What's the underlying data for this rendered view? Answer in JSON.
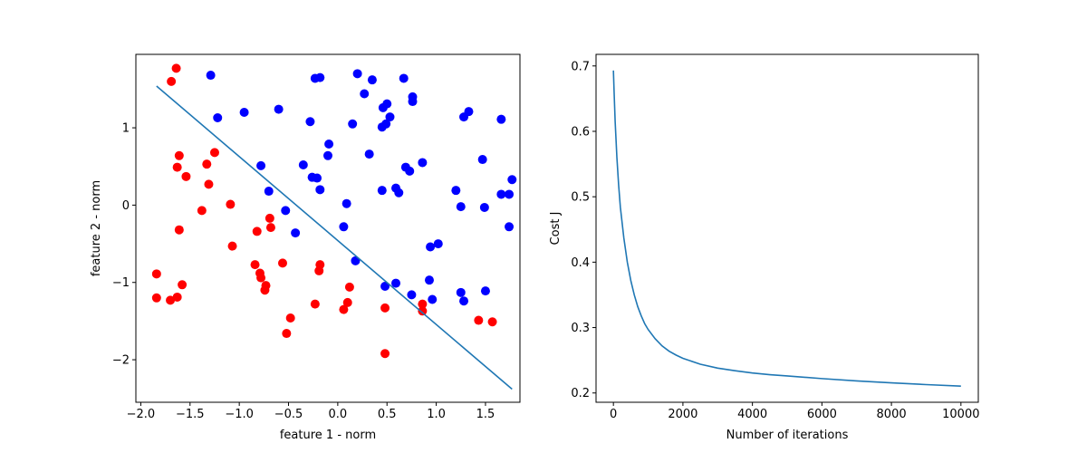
{
  "chart_data": [
    {
      "type": "scatter",
      "title": "",
      "xlabel": "feature 1 - norm",
      "ylabel": "feature 2 - norm",
      "xlim": [
        -2.05,
        1.85
      ],
      "ylim": [
        -2.55,
        1.95
      ],
      "xticks": [
        -2.0,
        -1.5,
        -1.0,
        -0.5,
        0.0,
        0.5,
        1.0,
        1.5
      ],
      "xtick_labels": [
        "−2.0",
        "−1.5",
        "−1.0",
        "−0.5",
        "0.0",
        "0.5",
        "1.0",
        "1.5"
      ],
      "yticks": [
        -2,
        -1,
        0,
        1
      ],
      "ytick_labels": [
        "−2",
        "−1",
        "0",
        "1"
      ],
      "grid": false,
      "series": [
        {
          "color": "#ff0000",
          "points": [
            [
              -1.64,
              1.77
            ],
            [
              -1.69,
              1.6
            ],
            [
              -1.61,
              0.64
            ],
            [
              -1.63,
              0.49
            ],
            [
              -1.54,
              0.37
            ],
            [
              -1.33,
              0.53
            ],
            [
              -1.25,
              0.68
            ],
            [
              -1.31,
              0.27
            ],
            [
              -1.38,
              -0.07
            ],
            [
              -1.09,
              0.01
            ],
            [
              -1.61,
              -0.32
            ],
            [
              -1.07,
              -0.53
            ],
            [
              -0.69,
              -0.17
            ],
            [
              -0.68,
              -0.29
            ],
            [
              -0.82,
              -0.34
            ],
            [
              -0.84,
              -0.77
            ],
            [
              -0.79,
              -0.88
            ],
            [
              -0.78,
              -0.94
            ],
            [
              -0.73,
              -1.04
            ],
            [
              -0.74,
              -1.1
            ],
            [
              -0.56,
              -0.75
            ],
            [
              -0.18,
              -0.77
            ],
            [
              -0.19,
              -0.85
            ],
            [
              -1.84,
              -0.89
            ],
            [
              -1.84,
              -1.2
            ],
            [
              -1.58,
              -1.03
            ],
            [
              -1.63,
              -1.19
            ],
            [
              -1.7,
              -1.23
            ],
            [
              -0.23,
              -1.28
            ],
            [
              -0.48,
              -1.46
            ],
            [
              -0.52,
              -1.66
            ],
            [
              0.06,
              -1.35
            ],
            [
              0.1,
              -1.26
            ],
            [
              0.12,
              -1.06
            ],
            [
              0.48,
              -1.33
            ],
            [
              0.86,
              -1.28
            ],
            [
              0.86,
              -1.37
            ],
            [
              1.43,
              -1.49
            ],
            [
              1.57,
              -1.51
            ],
            [
              0.48,
              -1.92
            ]
          ]
        },
        {
          "color": "#0000ff",
          "points": [
            [
              -1.29,
              1.68
            ],
            [
              -1.22,
              1.13
            ],
            [
              -0.95,
              1.2
            ],
            [
              -0.6,
              1.24
            ],
            [
              -0.23,
              1.64
            ],
            [
              -0.18,
              1.65
            ],
            [
              0.2,
              1.7
            ],
            [
              0.35,
              1.62
            ],
            [
              0.67,
              1.64
            ],
            [
              -0.28,
              1.08
            ],
            [
              0.15,
              1.05
            ],
            [
              0.27,
              1.44
            ],
            [
              0.46,
              1.26
            ],
            [
              0.5,
              1.31
            ],
            [
              0.53,
              1.14
            ],
            [
              0.49,
              1.05
            ],
            [
              0.45,
              1.01
            ],
            [
              0.76,
              1.4
            ],
            [
              0.76,
              1.34
            ],
            [
              -0.09,
              0.79
            ],
            [
              -0.1,
              0.64
            ],
            [
              0.32,
              0.66
            ],
            [
              -0.35,
              0.52
            ],
            [
              -0.78,
              0.51
            ],
            [
              -0.26,
              0.36
            ],
            [
              -0.21,
              0.35
            ],
            [
              -0.18,
              0.2
            ],
            [
              -0.7,
              0.18
            ],
            [
              0.09,
              0.02
            ],
            [
              0.45,
              0.19
            ],
            [
              0.59,
              0.22
            ],
            [
              0.62,
              0.16
            ],
            [
              0.69,
              0.49
            ],
            [
              0.73,
              0.44
            ],
            [
              0.86,
              0.55
            ],
            [
              -0.53,
              -0.07
            ],
            [
              -0.43,
              -0.36
            ],
            [
              0.06,
              -0.28
            ],
            [
              0.18,
              -0.72
            ],
            [
              0.48,
              -1.05
            ],
            [
              0.59,
              -1.01
            ],
            [
              0.75,
              -1.16
            ],
            [
              0.93,
              -0.97
            ],
            [
              0.96,
              -1.22
            ],
            [
              0.94,
              -0.54
            ],
            [
              1.02,
              -0.5
            ],
            [
              1.2,
              0.19
            ],
            [
              1.25,
              -0.02
            ],
            [
              1.28,
              1.14
            ],
            [
              1.33,
              1.21
            ],
            [
              1.47,
              0.59
            ],
            [
              1.49,
              -0.03
            ],
            [
              1.66,
              0.14
            ],
            [
              1.74,
              0.14
            ],
            [
              1.74,
              -0.28
            ],
            [
              1.77,
              0.33
            ],
            [
              1.66,
              1.11
            ],
            [
              1.25,
              -1.13
            ],
            [
              1.28,
              -1.24
            ],
            [
              1.5,
              -1.11
            ]
          ]
        }
      ],
      "line": {
        "color": "#1f77b4",
        "points": [
          [
            -1.84,
            1.54
          ],
          [
            1.77,
            -2.38
          ]
        ]
      }
    },
    {
      "type": "line",
      "title": "",
      "xlabel": "Number of iterations",
      "ylabel": "Cost J",
      "xlim": [
        -500,
        10500
      ],
      "ylim": [
        0.1858,
        0.7177
      ],
      "xticks": [
        0,
        2000,
        4000,
        6000,
        8000,
        10000
      ],
      "xtick_labels": [
        "0",
        "2000",
        "4000",
        "6000",
        "8000",
        "10000"
      ],
      "yticks": [
        0.2,
        0.3,
        0.4,
        0.5,
        0.6,
        0.7
      ],
      "ytick_labels": [
        "0.2",
        "0.3",
        "0.4",
        "0.5",
        "0.6",
        "0.7"
      ],
      "grid": false,
      "series": [
        {
          "color": "#1f77b4",
          "x": [
            0,
            20,
            50,
            100,
            150,
            200,
            300,
            400,
            500,
            600,
            700,
            800,
            900,
            1000,
            1200,
            1400,
            1600,
            1800,
            2000,
            2500,
            3000,
            3500,
            4000,
            4500,
            5000,
            6000,
            7000,
            8000,
            9000,
            10000
          ],
          "y": [
            0.693,
            0.66,
            0.615,
            0.56,
            0.518,
            0.484,
            0.437,
            0.4,
            0.372,
            0.35,
            0.332,
            0.318,
            0.306,
            0.297,
            0.283,
            0.272,
            0.264,
            0.258,
            0.253,
            0.244,
            0.238,
            0.234,
            0.2305,
            0.228,
            0.226,
            0.222,
            0.2185,
            0.2155,
            0.2128,
            0.2105
          ]
        }
      ]
    }
  ]
}
